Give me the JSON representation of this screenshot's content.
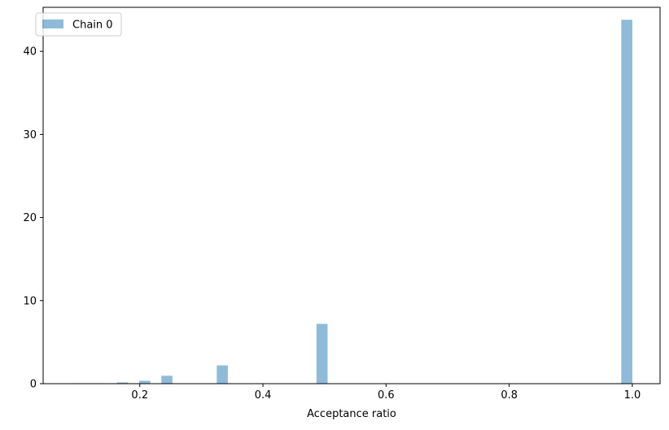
{
  "chart_data": {
    "type": "bar",
    "title": "",
    "xlabel": "Acceptance ratio",
    "ylabel": "",
    "xlim": [
      0.043,
      1.045
    ],
    "ylim": [
      0,
      45.3
    ],
    "x_ticks": [
      0.2,
      0.4,
      0.6,
      0.8,
      1.0
    ],
    "x_tick_labels": [
      "0.2",
      "0.4",
      "0.6",
      "0.8",
      "1.0"
    ],
    "y_ticks": [
      0,
      10,
      20,
      30,
      40
    ],
    "y_tick_labels": [
      "0",
      "10",
      "20",
      "30",
      "40"
    ],
    "bin_width": 0.018,
    "grid": false,
    "legend_position": "top-left",
    "series": [
      {
        "name": "Chain 0",
        "color": "#1f77b4",
        "alpha": 0.5,
        "bars": [
          {
            "x": 0.1,
            "value": 0.05
          },
          {
            "x": 0.118,
            "value": 0.05
          },
          {
            "x": 0.136,
            "value": 0.05
          },
          {
            "x": 0.172,
            "value": 0.15
          },
          {
            "x": 0.208,
            "value": 0.35
          },
          {
            "x": 0.244,
            "value": 0.95
          },
          {
            "x": 0.334,
            "value": 2.2
          },
          {
            "x": 0.496,
            "value": 7.2
          },
          {
            "x": 0.991,
            "value": 43.8
          }
        ]
      }
    ]
  }
}
